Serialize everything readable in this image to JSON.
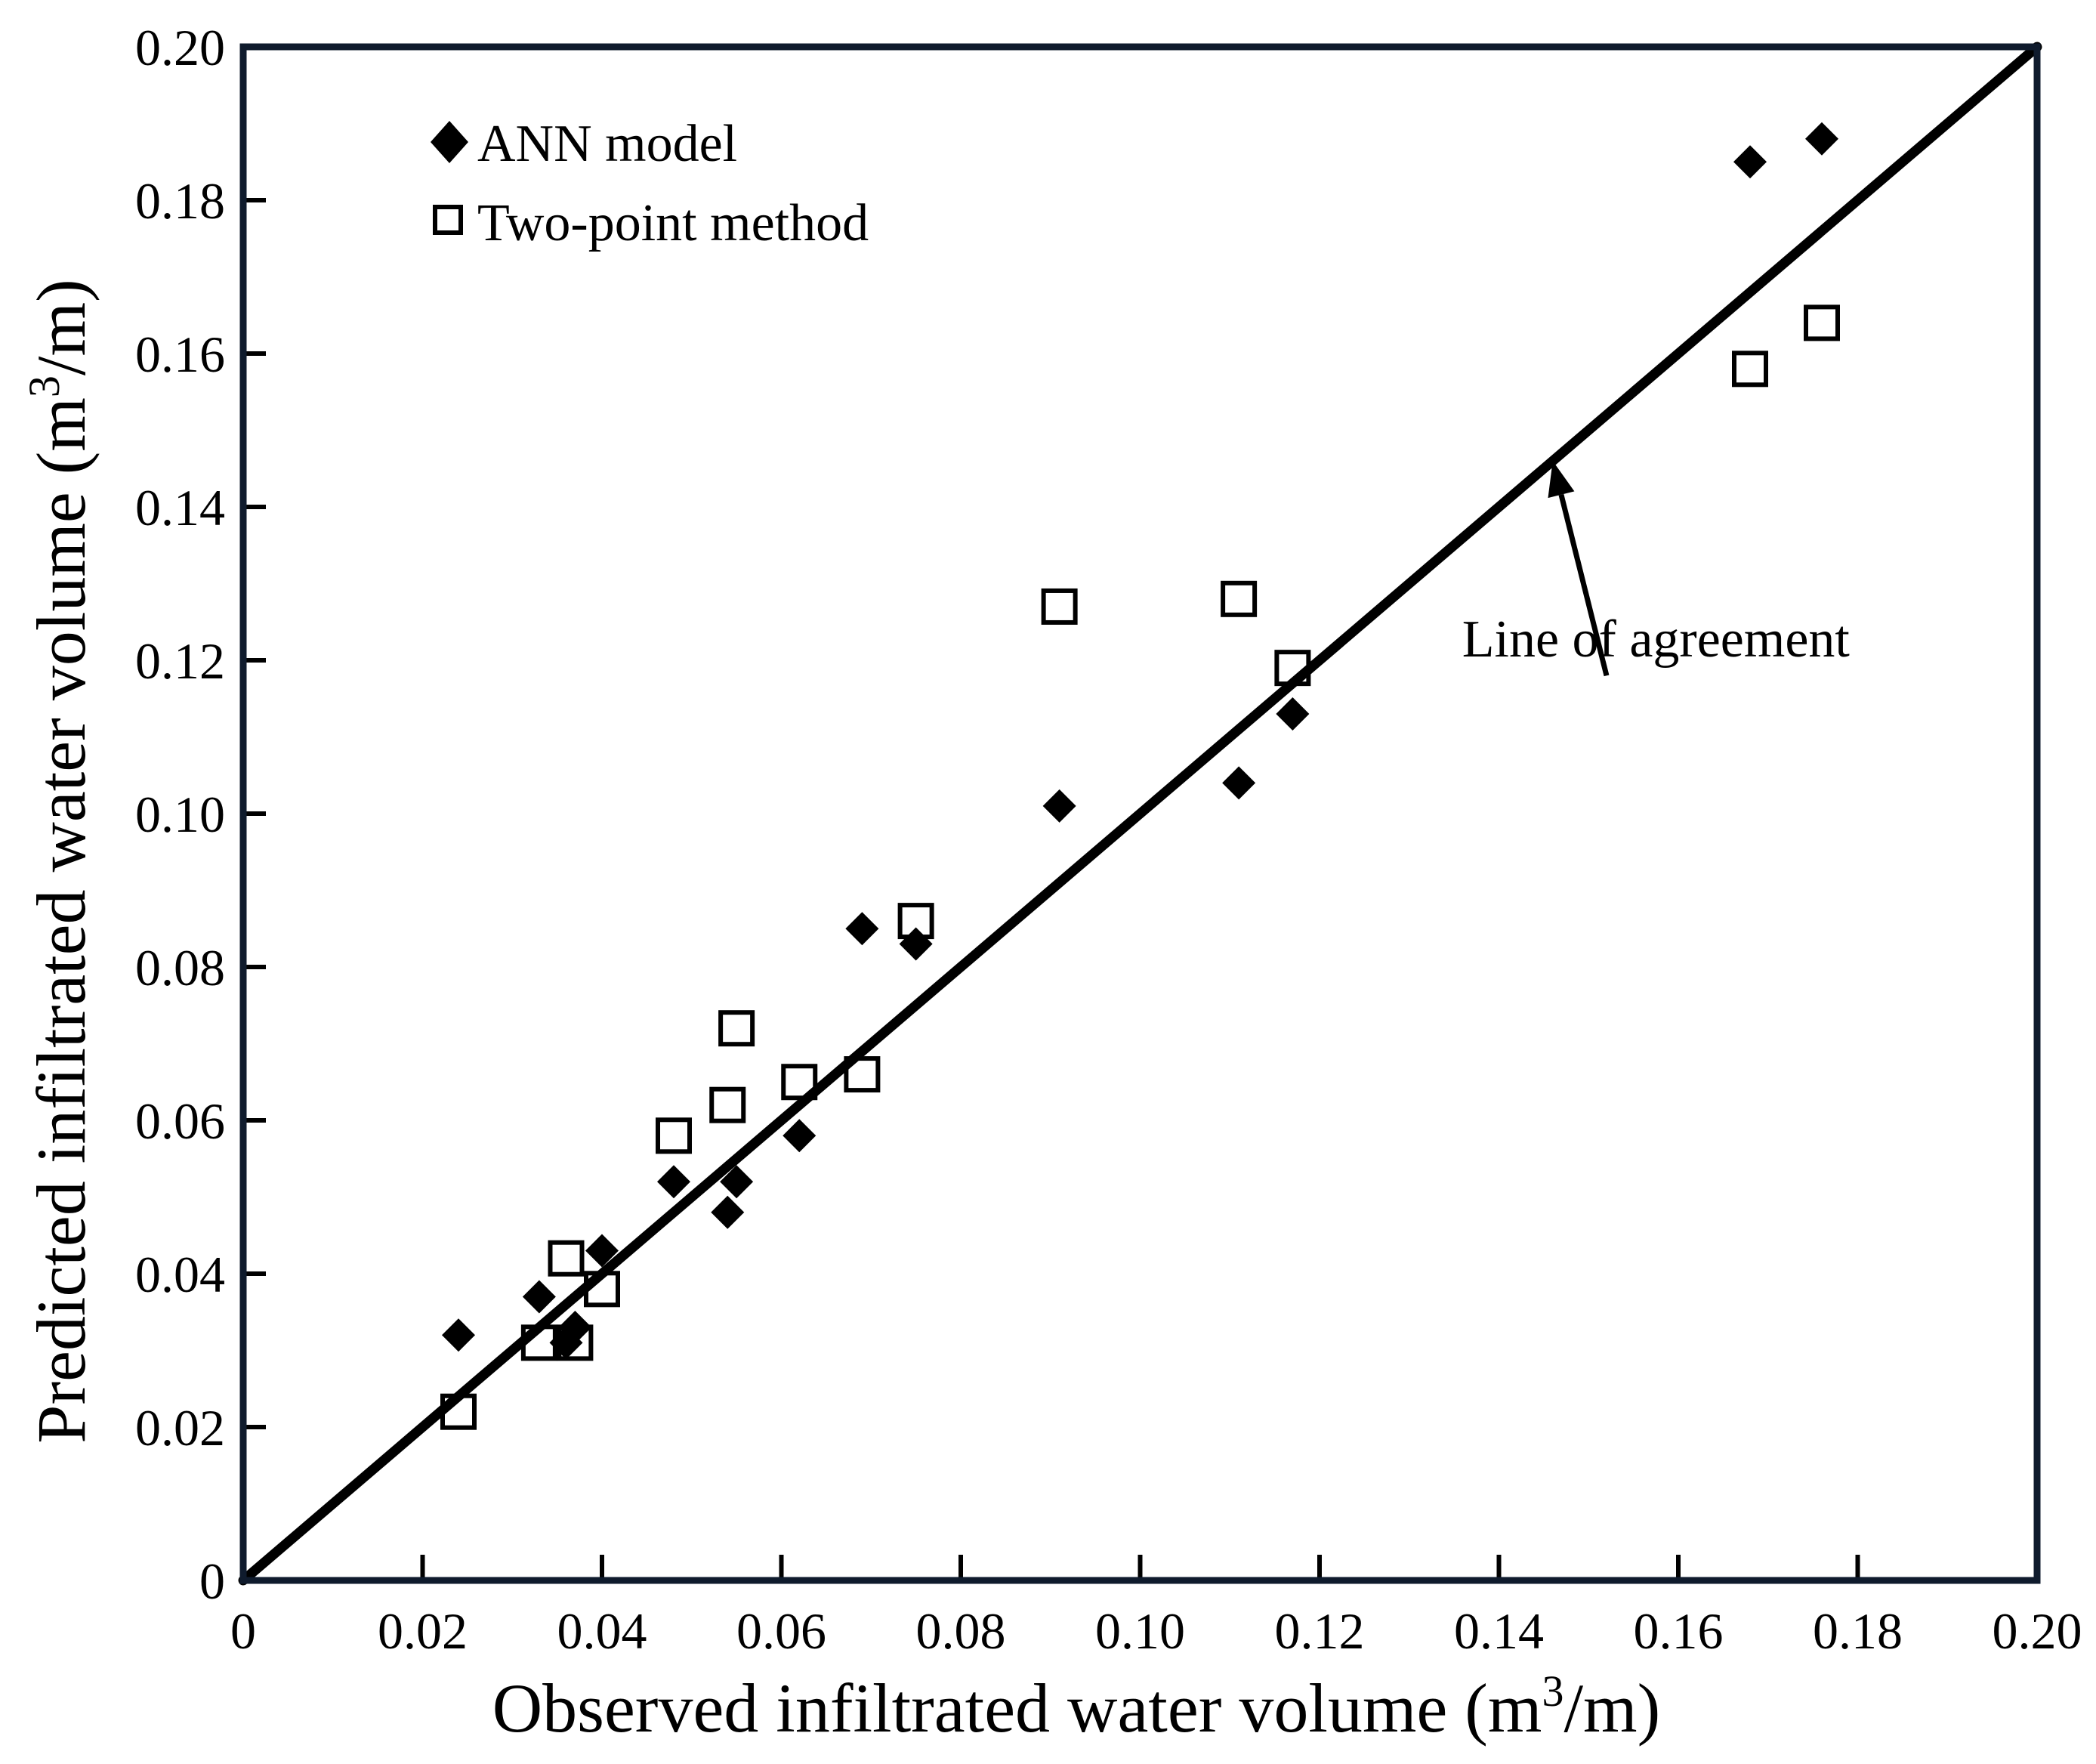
{
  "colors": {
    "frame": "#0f1b2d",
    "ink": "#000000",
    "background": "#ffffff"
  },
  "chart_data": {
    "type": "scatter",
    "title": "",
    "xlabel_main": "Observed infiltrated water volume (m",
    "xlabel_sup": "3",
    "xlabel_tail": "/m)",
    "ylabel_main": "Predicted infiltrated water volume (m",
    "ylabel_sup": "3",
    "ylabel_tail": "/m)",
    "xlim": [
      0,
      0.2
    ],
    "ylim": [
      0,
      0.2
    ],
    "xticks": [
      {
        "value": 0,
        "label": "0"
      },
      {
        "value": 0.02,
        "label": "0.02"
      },
      {
        "value": 0.04,
        "label": "0.04"
      },
      {
        "value": 0.06,
        "label": "0.06"
      },
      {
        "value": 0.08,
        "label": "0.08"
      },
      {
        "value": 0.1,
        "label": "0.10"
      },
      {
        "value": 0.12,
        "label": "0.12"
      },
      {
        "value": 0.14,
        "label": "0.14"
      },
      {
        "value": 0.16,
        "label": "0.16"
      },
      {
        "value": 0.18,
        "label": "0.18"
      },
      {
        "value": 0.2,
        "label": "0.20"
      }
    ],
    "yticks": [
      {
        "value": 0,
        "label": "0"
      },
      {
        "value": 0.02,
        "label": "0.02"
      },
      {
        "value": 0.04,
        "label": "0.04"
      },
      {
        "value": 0.06,
        "label": "0.06"
      },
      {
        "value": 0.08,
        "label": "0.08"
      },
      {
        "value": 0.1,
        "label": "0.10"
      },
      {
        "value": 0.12,
        "label": "0.12"
      },
      {
        "value": 0.14,
        "label": "0.14"
      },
      {
        "value": 0.16,
        "label": "0.16"
      },
      {
        "value": 0.18,
        "label": "0.18"
      },
      {
        "value": 0.2,
        "label": "0.20"
      }
    ],
    "grid": false,
    "legend_position": "top-left",
    "series": [
      {
        "name": "ANN model",
        "marker": "filled-diamond",
        "points": [
          [
            0.024,
            0.032
          ],
          [
            0.033,
            0.037
          ],
          [
            0.036,
            0.031
          ],
          [
            0.037,
            0.033
          ],
          [
            0.04,
            0.043
          ],
          [
            0.048,
            0.052
          ],
          [
            0.054,
            0.048
          ],
          [
            0.055,
            0.052
          ],
          [
            0.062,
            0.058
          ],
          [
            0.069,
            0.085
          ],
          [
            0.075,
            0.083
          ],
          [
            0.091,
            0.101
          ],
          [
            0.111,
            0.104
          ],
          [
            0.117,
            0.113
          ],
          [
            0.168,
            0.185
          ],
          [
            0.176,
            0.188
          ]
        ]
      },
      {
        "name": "Two-point method",
        "marker": "open-square",
        "points": [
          [
            0.024,
            0.022
          ],
          [
            0.033,
            0.031
          ],
          [
            0.036,
            0.042
          ],
          [
            0.037,
            0.031
          ],
          [
            0.04,
            0.038
          ],
          [
            0.048,
            0.058
          ],
          [
            0.054,
            0.062
          ],
          [
            0.055,
            0.072
          ],
          [
            0.062,
            0.065
          ],
          [
            0.069,
            0.066
          ],
          [
            0.075,
            0.086
          ],
          [
            0.091,
            0.127
          ],
          [
            0.111,
            0.128
          ],
          [
            0.117,
            0.119
          ],
          [
            0.168,
            0.158
          ],
          [
            0.176,
            0.164
          ]
        ]
      }
    ],
    "reference_line": {
      "name": "Line of agreement",
      "from": [
        0,
        0
      ],
      "to": [
        0.2,
        0.2
      ]
    },
    "annotations": [
      {
        "text": "Line of agreement",
        "text_at": [
          0.1575,
          0.1205
        ],
        "arrow_from": [
          0.152,
          0.118
        ],
        "arrow_to": [
          0.146,
          0.146
        ]
      }
    ]
  }
}
